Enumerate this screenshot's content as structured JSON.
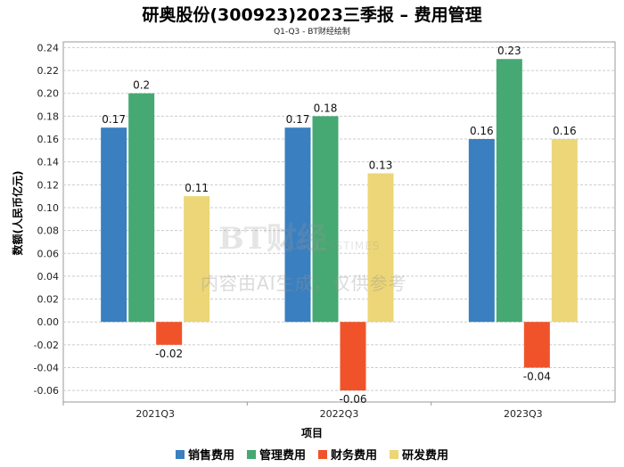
{
  "chart_data": {
    "type": "bar",
    "title": "研奥股份(300923)2023三季报 – 费用管理",
    "subtitle": "Q1-Q3 - BT财经绘制",
    "xlabel": "项目",
    "ylabel": "数额(人民币亿元)",
    "categories": [
      "2021Q3",
      "2022Q3",
      "2023Q3"
    ],
    "ylim": [
      -0.07,
      0.245
    ],
    "yticks": [
      -0.06,
      -0.04,
      -0.02,
      0.0,
      0.02,
      0.04,
      0.06,
      0.08,
      0.1,
      0.12,
      0.14,
      0.16,
      0.18,
      0.2,
      0.22,
      0.24
    ],
    "ytick_labels": [
      "-0.06",
      "-0.04",
      "-0.02",
      "0.00",
      "0.02",
      "0.04",
      "0.06",
      "0.08",
      "0.10",
      "0.12",
      "0.14",
      "0.16",
      "0.18",
      "0.20",
      "0.22",
      "0.24"
    ],
    "grid": true,
    "legend_position": "bottom",
    "series": [
      {
        "name": "销售费用",
        "color": "#3a7fc0",
        "values": [
          0.17,
          0.17,
          0.16
        ],
        "labels": [
          "0.17",
          "0.17",
          "0.16"
        ]
      },
      {
        "name": "管理费用",
        "color": "#46a873",
        "values": [
          0.2,
          0.18,
          0.23
        ],
        "labels": [
          "0.2",
          "0.18",
          "0.23"
        ]
      },
      {
        "name": "财务费用",
        "color": "#f0532a",
        "values": [
          -0.02,
          -0.06,
          -0.04
        ],
        "labels": [
          "-0.02",
          "-0.06",
          "-0.04"
        ]
      },
      {
        "name": "研发费用",
        "color": "#ecd677",
        "values": [
          0.11,
          0.13,
          0.16
        ],
        "labels": [
          "0.11",
          "0.13",
          "0.16"
        ]
      }
    ]
  },
  "watermark": {
    "logo": "BT财经",
    "logo_sub": "BUSINESSTIMES",
    "text": "内容由AI生成，仅供参考"
  }
}
